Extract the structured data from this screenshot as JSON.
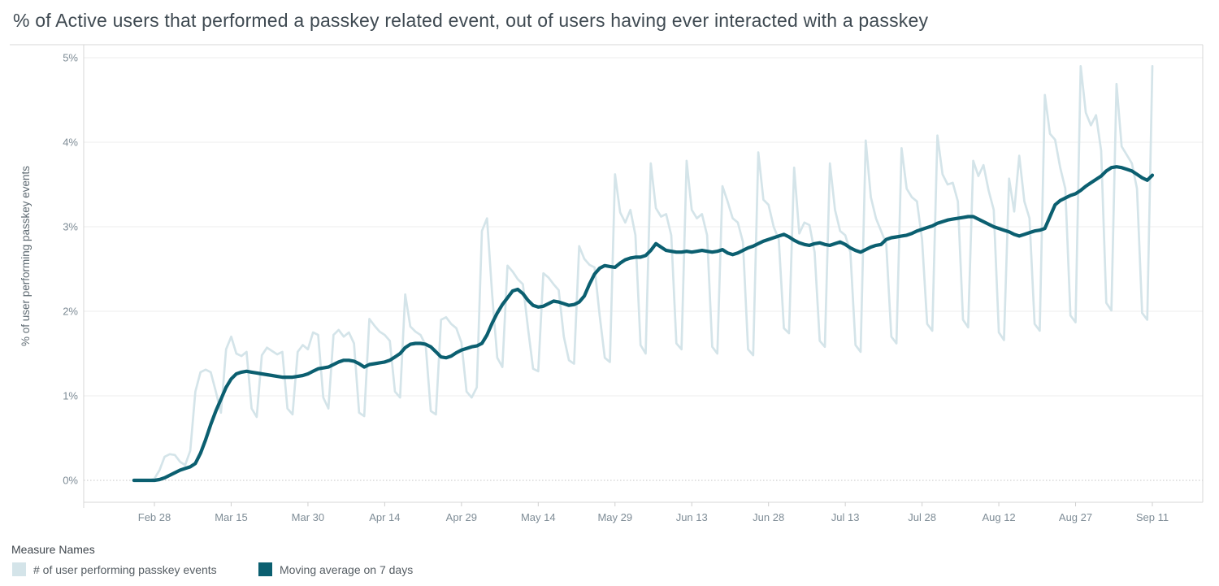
{
  "title": "% of Active users that performed a passkey related event, out of users having ever interacted with a passkey",
  "legend": {
    "title": "Measure Names",
    "items": [
      {
        "label": "# of user performing passkey events",
        "color": "#d4e4e9"
      },
      {
        "label": "Moving average on 7 days",
        "color": "#0b5f70"
      }
    ]
  },
  "colors": {
    "raw_series": "#d4e4e9",
    "moving_average_series": "#0b5f70",
    "gridline": "#ececec",
    "zero_line": "#c4c4c4",
    "axis_line": "#d7d7d7",
    "tick_mark": "#cfcfcf",
    "axis_label_text": "#7e8c96",
    "axis_title_text": "#5e6a72",
    "title_text": "#3f4a52",
    "background": "#ffffff"
  },
  "chart_data": {
    "type": "line",
    "title": "% of Active users that performed a passkey related event, out of users having ever interacted with a passkey",
    "xlabel": "",
    "ylabel": "% of user performing passkey events",
    "ylim": [
      0,
      5
    ],
    "y_ticks": [
      "0%",
      "1%",
      "2%",
      "3%",
      "4%",
      "5%"
    ],
    "x_ticks": [
      "Feb 28",
      "Mar 15",
      "Mar 30",
      "Apr 14",
      "Apr 29",
      "May 14",
      "May 29",
      "Jun 13",
      "Jun 28",
      "Jul 13",
      "Jul 28",
      "Aug 12",
      "Aug 27",
      "Sep 11"
    ],
    "x_unit": "day",
    "x_start": "Feb 24",
    "x_end": "Sep 11",
    "points_per_series": 200,
    "first_tick_point_index": 4,
    "tick_interval_days": 15,
    "grid": "horizontal",
    "zero_line_style": "dotted",
    "legend_position": "bottom-left",
    "series": [
      {
        "name": "# of user performing passkey events",
        "color": "#d4e4e9",
        "values": [
          0.0,
          0.0,
          0.0,
          0.0,
          0.02,
          0.12,
          0.28,
          0.31,
          0.3,
          0.22,
          0.18,
          0.35,
          1.05,
          1.28,
          1.31,
          1.28,
          1.05,
          0.8,
          1.55,
          1.7,
          1.5,
          1.47,
          1.52,
          0.85,
          0.75,
          1.48,
          1.57,
          1.53,
          1.49,
          1.52,
          0.85,
          0.78,
          1.52,
          1.6,
          1.55,
          1.75,
          1.72,
          0.98,
          0.85,
          1.72,
          1.78,
          1.7,
          1.75,
          1.62,
          0.8,
          0.76,
          1.91,
          1.83,
          1.76,
          1.72,
          1.65,
          1.05,
          0.98,
          2.2,
          1.82,
          1.76,
          1.72,
          1.6,
          0.82,
          0.78,
          1.9,
          1.93,
          1.85,
          1.8,
          1.63,
          1.05,
          0.98,
          1.1,
          2.95,
          3.1,
          2.2,
          1.45,
          1.34,
          2.54,
          2.47,
          2.38,
          2.32,
          1.8,
          1.32,
          1.29,
          2.45,
          2.4,
          2.32,
          2.25,
          1.7,
          1.42,
          1.38,
          2.77,
          2.62,
          2.55,
          2.52,
          1.95,
          1.45,
          1.4,
          3.62,
          3.17,
          3.05,
          3.2,
          2.9,
          1.6,
          1.5,
          3.75,
          3.22,
          3.12,
          3.15,
          2.9,
          1.62,
          1.55,
          3.78,
          3.2,
          3.1,
          3.15,
          2.9,
          1.58,
          1.5,
          3.48,
          3.3,
          3.1,
          3.05,
          2.82,
          1.55,
          1.48,
          3.88,
          3.32,
          3.26,
          3.0,
          2.85,
          1.8,
          1.74,
          3.7,
          2.92,
          3.05,
          3.02,
          2.7,
          1.65,
          1.58,
          3.75,
          3.2,
          2.95,
          2.9,
          2.7,
          1.6,
          1.52,
          4.02,
          3.35,
          3.1,
          2.95,
          2.8,
          1.7,
          1.62,
          3.93,
          3.45,
          3.35,
          3.3,
          2.85,
          1.85,
          1.77,
          4.08,
          3.62,
          3.5,
          3.52,
          3.3,
          1.9,
          1.81,
          3.78,
          3.6,
          3.73,
          3.43,
          3.2,
          1.75,
          1.66,
          3.57,
          3.18,
          3.84,
          3.3,
          3.1,
          1.85,
          1.77,
          4.56,
          4.1,
          4.03,
          3.7,
          3.45,
          1.95,
          1.87,
          4.9,
          4.35,
          4.2,
          4.32,
          3.9,
          2.1,
          2.01,
          4.69,
          3.95,
          3.85,
          3.75,
          3.45,
          1.98,
          1.9,
          4.9
        ]
      },
      {
        "name": "Moving average on 7 days",
        "color": "#0b5f70",
        "values": [
          0.0,
          0.0,
          0.0,
          0.0,
          0.0,
          0.01,
          0.03,
          0.06,
          0.09,
          0.12,
          0.14,
          0.16,
          0.2,
          0.32,
          0.48,
          0.66,
          0.82,
          0.96,
          1.1,
          1.2,
          1.26,
          1.28,
          1.29,
          1.28,
          1.27,
          1.26,
          1.25,
          1.24,
          1.23,
          1.22,
          1.22,
          1.22,
          1.23,
          1.24,
          1.26,
          1.29,
          1.32,
          1.33,
          1.34,
          1.37,
          1.4,
          1.42,
          1.42,
          1.41,
          1.38,
          1.34,
          1.37,
          1.38,
          1.39,
          1.4,
          1.42,
          1.46,
          1.5,
          1.57,
          1.61,
          1.62,
          1.62,
          1.61,
          1.58,
          1.52,
          1.46,
          1.45,
          1.47,
          1.51,
          1.54,
          1.56,
          1.58,
          1.59,
          1.62,
          1.72,
          1.86,
          1.98,
          2.08,
          2.16,
          2.24,
          2.26,
          2.21,
          2.13,
          2.07,
          2.05,
          2.06,
          2.09,
          2.12,
          2.11,
          2.09,
          2.07,
          2.08,
          2.11,
          2.18,
          2.32,
          2.44,
          2.51,
          2.54,
          2.53,
          2.52,
          2.57,
          2.61,
          2.63,
          2.64,
          2.64,
          2.66,
          2.72,
          2.8,
          2.76,
          2.72,
          2.71,
          2.7,
          2.7,
          2.71,
          2.7,
          2.71,
          2.72,
          2.71,
          2.7,
          2.71,
          2.73,
          2.69,
          2.67,
          2.69,
          2.72,
          2.75,
          2.77,
          2.8,
          2.83,
          2.85,
          2.87,
          2.89,
          2.91,
          2.88,
          2.84,
          2.81,
          2.79,
          2.78,
          2.8,
          2.81,
          2.79,
          2.78,
          2.8,
          2.82,
          2.79,
          2.75,
          2.72,
          2.7,
          2.73,
          2.76,
          2.78,
          2.79,
          2.85,
          2.87,
          2.88,
          2.89,
          2.9,
          2.92,
          2.95,
          2.97,
          2.99,
          3.01,
          3.04,
          3.06,
          3.08,
          3.09,
          3.1,
          3.11,
          3.12,
          3.12,
          3.09,
          3.06,
          3.03,
          3.0,
          2.98,
          2.96,
          2.94,
          2.91,
          2.89,
          2.91,
          2.93,
          2.95,
          2.96,
          2.98,
          3.12,
          3.26,
          3.31,
          3.34,
          3.37,
          3.39,
          3.43,
          3.48,
          3.52,
          3.56,
          3.6,
          3.66,
          3.7,
          3.71,
          3.7,
          3.68,
          3.66,
          3.62,
          3.58,
          3.55,
          3.61
        ]
      }
    ]
  }
}
